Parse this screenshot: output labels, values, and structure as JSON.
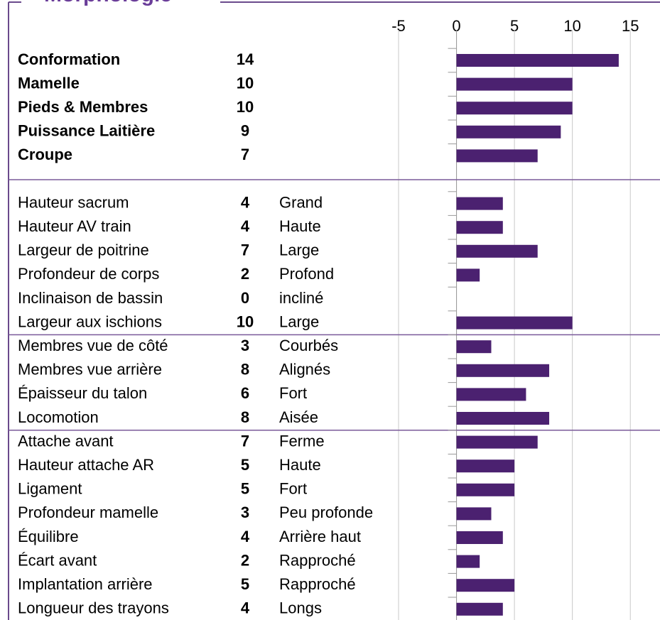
{
  "chart_data": {
    "type": "bar",
    "title": "Morphologie",
    "color": "#4b2170",
    "xlim": [
      -5,
      17.5
    ],
    "xticks": [
      -5,
      0,
      5,
      10,
      15
    ],
    "grid": true,
    "groups": [
      {
        "bold": true,
        "categories": [
          "Conformation",
          "Mamelle",
          "Pieds & Membres",
          "Puissance Laitière",
          "Croupe"
        ],
        "values": [
          14,
          10,
          10,
          9,
          7
        ]
      },
      {
        "categories": [
          "Hauteur sacrum",
          "Hauteur AV train",
          "Largeur de poitrine",
          "Profondeur de corps",
          "Inclinaison de bassin",
          "Largeur aux ischions"
        ],
        "values": [
          4,
          4,
          7,
          2,
          0,
          10
        ],
        "descriptors": [
          "Grand",
          "Haute",
          "Large",
          "Profond",
          "incliné",
          "Large"
        ]
      },
      {
        "categories": [
          "Membres vue de côté",
          "Membres vue arrière",
          "Épaisseur du talon",
          "Locomotion"
        ],
        "values": [
          3,
          8,
          6,
          8
        ],
        "descriptors": [
          "Courbés",
          "Alignés",
          "Fort",
          "Aisée"
        ]
      },
      {
        "categories": [
          "Attache avant",
          "Hauteur attache AR",
          "Ligament",
          "Profondeur mamelle",
          "Équilibre",
          "Écart avant",
          "Implantation arrière",
          "Longueur des trayons"
        ],
        "values": [
          7,
          5,
          5,
          3,
          4,
          2,
          5,
          4
        ],
        "descriptors": [
          "Ferme",
          "Haute",
          "Fort",
          "Peu profonde",
          "Arrière haut",
          "Rapproché",
          "Rapproché",
          "Longs"
        ]
      }
    ]
  }
}
